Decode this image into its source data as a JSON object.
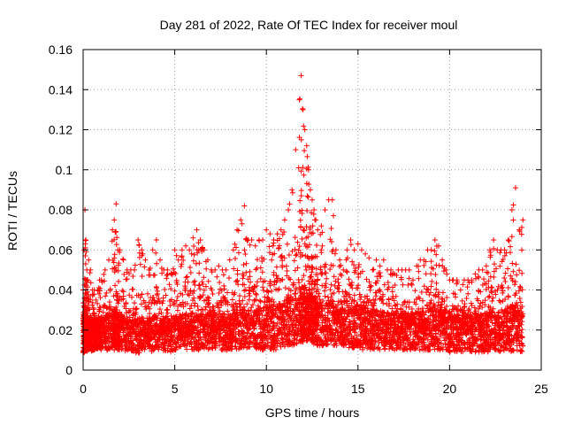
{
  "chart_data": {
    "type": "scatter",
    "title": "Day 281 of 2022, Rate Of TEC Index for receiver moul",
    "xlabel": "GPS time / hours",
    "ylabel": "ROTI / TECUs",
    "xlim": [
      0,
      25
    ],
    "ylim": [
      0,
      0.16
    ],
    "xticks": [
      0,
      5,
      10,
      15,
      20,
      25
    ],
    "xtick_labels": [
      "0",
      "5",
      "10",
      "15",
      "20",
      "25"
    ],
    "yticks": [
      0,
      0.02,
      0.04,
      0.06,
      0.08,
      0.1,
      0.12,
      0.14,
      0.16
    ],
    "ytick_labels": [
      "0",
      "0.02",
      "0.04",
      "0.06",
      "0.08",
      "0.1",
      "0.12",
      "0.14",
      "0.16"
    ],
    "grid": true,
    "marker": "+",
    "color": "#ff0000",
    "series": [
      {
        "x": [
          0.0,
          0.05,
          0.1,
          0.15,
          0.2,
          0.25,
          0.3,
          0.4,
          0.5,
          0.6,
          0.7,
          0.8,
          0.9,
          1.0,
          1.2,
          1.4,
          1.6,
          1.7,
          1.8,
          1.9,
          2.0,
          2.2,
          2.4,
          2.6,
          2.8,
          3.0,
          3.2,
          3.4,
          3.6,
          3.8,
          4.0,
          4.2,
          4.4,
          4.6,
          4.8,
          5.0,
          5.2,
          5.4,
          5.6,
          5.8,
          6.0,
          6.2,
          6.4,
          6.6,
          6.8,
          7.0,
          7.2,
          7.4,
          7.6,
          7.8,
          8.0,
          8.2,
          8.4,
          8.6,
          8.8,
          9.0,
          9.2,
          9.4,
          9.6,
          9.8,
          10.0,
          10.2,
          10.4,
          10.6,
          10.8,
          11.0,
          11.2,
          11.4,
          11.6,
          11.8,
          11.9,
          12.0,
          12.1,
          12.2,
          12.3,
          12.4,
          12.5,
          12.6,
          12.7,
          12.8,
          13.0,
          13.2,
          13.4,
          13.6,
          13.8,
          14.0,
          14.2,
          14.4,
          14.6,
          14.8,
          15.0,
          15.2,
          15.4,
          15.6,
          15.8,
          16.0,
          16.2,
          16.4,
          16.6,
          16.8,
          17.0,
          17.2,
          17.4,
          17.6,
          17.8,
          18.0,
          18.2,
          18.4,
          18.6,
          18.8,
          19.0,
          19.2,
          19.4,
          19.6,
          19.8,
          20.0,
          20.2,
          20.4,
          20.6,
          20.8,
          21.0,
          21.2,
          21.4,
          21.6,
          21.8,
          22.0,
          22.2,
          22.4,
          22.6,
          22.8,
          23.0,
          23.2,
          23.4,
          23.6,
          23.8,
          24.0
        ],
        "y_low": [
          0.008,
          0.008,
          0.009,
          0.009,
          0.009,
          0.01,
          0.01,
          0.01,
          0.009,
          0.01,
          0.01,
          0.01,
          0.01,
          0.01,
          0.01,
          0.01,
          0.01,
          0.01,
          0.011,
          0.01,
          0.01,
          0.01,
          0.009,
          0.009,
          0.009,
          0.008,
          0.01,
          0.01,
          0.01,
          0.009,
          0.01,
          0.01,
          0.009,
          0.009,
          0.009,
          0.008,
          0.01,
          0.01,
          0.01,
          0.01,
          0.01,
          0.01,
          0.01,
          0.01,
          0.01,
          0.01,
          0.01,
          0.01,
          0.01,
          0.01,
          0.01,
          0.01,
          0.01,
          0.011,
          0.011,
          0.011,
          0.011,
          0.011,
          0.01,
          0.01,
          0.01,
          0.01,
          0.01,
          0.01,
          0.01,
          0.01,
          0.012,
          0.012,
          0.013,
          0.013,
          0.013,
          0.014,
          0.014,
          0.014,
          0.014,
          0.014,
          0.013,
          0.013,
          0.013,
          0.012,
          0.012,
          0.012,
          0.012,
          0.012,
          0.012,
          0.012,
          0.012,
          0.011,
          0.011,
          0.011,
          0.01,
          0.01,
          0.01,
          0.01,
          0.01,
          0.01,
          0.01,
          0.01,
          0.01,
          0.01,
          0.01,
          0.01,
          0.01,
          0.01,
          0.01,
          0.01,
          0.01,
          0.01,
          0.01,
          0.01,
          0.01,
          0.01,
          0.01,
          0.01,
          0.01,
          0.009,
          0.009,
          0.009,
          0.009,
          0.009,
          0.009,
          0.009,
          0.009,
          0.009,
          0.009,
          0.009,
          0.009,
          0.009,
          0.009,
          0.009,
          0.009,
          0.009,
          0.009,
          0.009,
          0.009,
          0.009
        ],
        "y_high": [
          0.04,
          0.06,
          0.08,
          0.065,
          0.05,
          0.045,
          0.055,
          0.05,
          0.04,
          0.04,
          0.035,
          0.04,
          0.045,
          0.045,
          0.05,
          0.055,
          0.07,
          0.075,
          0.083,
          0.06,
          0.06,
          0.055,
          0.05,
          0.05,
          0.05,
          0.065,
          0.06,
          0.055,
          0.05,
          0.06,
          0.065,
          0.055,
          0.05,
          0.05,
          0.048,
          0.06,
          0.055,
          0.06,
          0.062,
          0.06,
          0.066,
          0.07,
          0.065,
          0.06,
          0.055,
          0.05,
          0.05,
          0.052,
          0.05,
          0.05,
          0.055,
          0.06,
          0.07,
          0.075,
          0.082,
          0.065,
          0.065,
          0.062,
          0.065,
          0.065,
          0.07,
          0.068,
          0.065,
          0.068,
          0.07,
          0.075,
          0.08,
          0.09,
          0.11,
          0.135,
          0.147,
          0.13,
          0.12,
          0.112,
          0.1,
          0.09,
          0.085,
          0.08,
          0.075,
          0.07,
          0.072,
          0.08,
          0.085,
          0.085,
          0.06,
          0.055,
          0.05,
          0.06,
          0.065,
          0.06,
          0.063,
          0.06,
          0.058,
          0.056,
          0.05,
          0.055,
          0.052,
          0.055,
          0.05,
          0.05,
          0.048,
          0.05,
          0.05,
          0.05,
          0.05,
          0.045,
          0.052,
          0.055,
          0.055,
          0.06,
          0.06,
          0.065,
          0.062,
          0.055,
          0.05,
          0.045,
          0.045,
          0.045,
          0.04,
          0.045,
          0.045,
          0.045,
          0.048,
          0.05,
          0.05,
          0.052,
          0.06,
          0.065,
          0.06,
          0.06,
          0.06,
          0.065,
          0.08,
          0.091,
          0.07,
          0.075
        ],
        "core": [
          0.018,
          0.02,
          0.022,
          0.02,
          0.018,
          0.018,
          0.019,
          0.018,
          0.017,
          0.017,
          0.017,
          0.018,
          0.018,
          0.018,
          0.019,
          0.02,
          0.02,
          0.021,
          0.022,
          0.02,
          0.02,
          0.019,
          0.018,
          0.018,
          0.018,
          0.019,
          0.019,
          0.018,
          0.018,
          0.019,
          0.02,
          0.019,
          0.018,
          0.018,
          0.018,
          0.019,
          0.019,
          0.02,
          0.02,
          0.02,
          0.021,
          0.021,
          0.021,
          0.02,
          0.02,
          0.02,
          0.02,
          0.02,
          0.02,
          0.02,
          0.02,
          0.021,
          0.022,
          0.022,
          0.023,
          0.022,
          0.022,
          0.022,
          0.023,
          0.023,
          0.024,
          0.024,
          0.024,
          0.025,
          0.026,
          0.027,
          0.028,
          0.03,
          0.032,
          0.034,
          0.035,
          0.034,
          0.033,
          0.032,
          0.031,
          0.03,
          0.029,
          0.028,
          0.027,
          0.026,
          0.026,
          0.026,
          0.027,
          0.027,
          0.024,
          0.023,
          0.022,
          0.023,
          0.024,
          0.024,
          0.024,
          0.024,
          0.023,
          0.023,
          0.022,
          0.022,
          0.022,
          0.022,
          0.021,
          0.021,
          0.021,
          0.021,
          0.021,
          0.021,
          0.021,
          0.02,
          0.021,
          0.022,
          0.022,
          0.023,
          0.023,
          0.024,
          0.023,
          0.022,
          0.021,
          0.02,
          0.02,
          0.02,
          0.019,
          0.019,
          0.019,
          0.019,
          0.02,
          0.02,
          0.02,
          0.021,
          0.022,
          0.023,
          0.022,
          0.022,
          0.022,
          0.023,
          0.025,
          0.027,
          0.024,
          0.024
        ]
      }
    ]
  }
}
